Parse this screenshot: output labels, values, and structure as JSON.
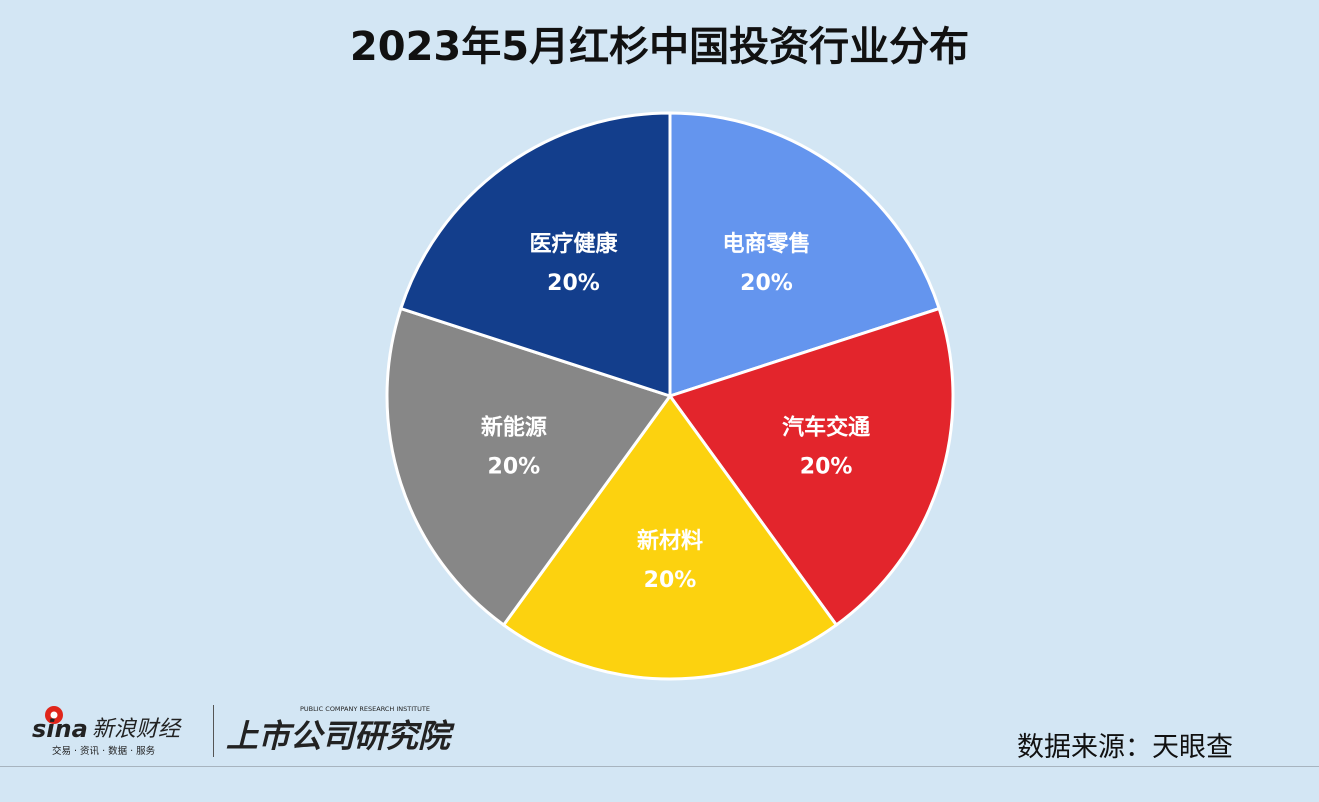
{
  "title": "2023年5月红杉中国投资行业分布",
  "chart_data": {
    "type": "pie",
    "labels": [
      "电商零售",
      "汽车交通",
      "新材料",
      "新能源",
      "医疗健康"
    ],
    "values": [
      20,
      20,
      20,
      20,
      20
    ],
    "value_labels": [
      "20%",
      "20%",
      "20%",
      "20%",
      "20%"
    ],
    "colors": [
      "#6495ee",
      "#e3252c",
      "#fcd20f",
      "#878787",
      "#133e8c"
    ]
  },
  "logos": {
    "sina_wordmark": "sina",
    "sina_name": "新浪财经",
    "sina_tagline": "交易 · 资讯 · 数据 · 服务",
    "institute_name": "上市公司研究院",
    "institute_english": "PUBLIC COMPANY RESEARCH INSTITUTE"
  },
  "source": "数据来源：天眼查"
}
